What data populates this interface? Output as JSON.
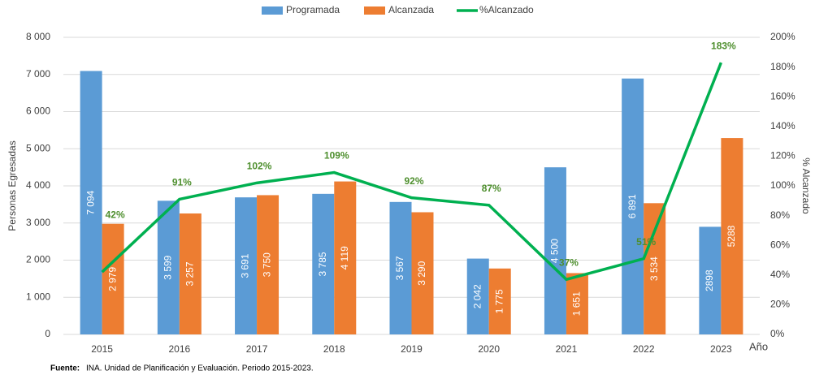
{
  "chart_data": {
    "type": "bar",
    "categories": [
      "2015",
      "2016",
      "2017",
      "2018",
      "2019",
      "2020",
      "2021",
      "2022",
      "2023"
    ],
    "series": [
      {
        "name": "Programada",
        "color": "#5b9bd5",
        "type": "bar",
        "values": [
          7094,
          3599,
          3691,
          3785,
          3567,
          2042,
          4500,
          6891,
          2898
        ],
        "value_labels": [
          "7 094",
          "3 599",
          "3 691",
          "3 785",
          "3 567",
          "2 042",
          "4 500",
          "6 891",
          "2898"
        ]
      },
      {
        "name": "Alcanzada",
        "color": "#ed7d31",
        "type": "bar",
        "values": [
          2979,
          3257,
          3750,
          4119,
          3290,
          1775,
          1651,
          3534,
          5288
        ],
        "value_labels": [
          "2 979",
          "3 257",
          "3 750",
          "4 119",
          "3 290",
          "1 775",
          "1 651",
          "3 534",
          "5288"
        ]
      },
      {
        "name": "%Alcanzado",
        "color": "#00b050",
        "type": "line",
        "axis": "y2",
        "values": [
          42,
          91,
          102,
          109,
          92,
          87,
          37,
          51,
          183
        ],
        "value_labels": [
          "42%",
          "91%",
          "102%",
          "109%",
          "92%",
          "87%",
          "37%",
          "51%",
          "183%"
        ]
      }
    ],
    "ylabel": "Personas Egresadas",
    "y2label": "% Alcanzado",
    "xlabel": "Año",
    "ylim": [
      0,
      8000
    ],
    "yticks": [
      0,
      {
        "value": 1000,
        "label": "1 000"
      },
      {
        "value": 2000,
        "label": "2 000"
      },
      {
        "value": 3000,
        "label": "3 000"
      },
      {
        "value": 4000,
        "label": "4 000"
      },
      {
        "value": 5000,
        "label": "5 000"
      },
      {
        "value": 6000,
        "label": "6 000"
      },
      {
        "value": 7000,
        "label": "7 000"
      },
      {
        "value": 8000,
        "label": "8 000"
      }
    ],
    "y2lim": [
      0,
      200
    ],
    "y2ticks": [
      {
        "value": 0,
        "label": "0%"
      },
      {
        "value": 20,
        "label": "20%"
      },
      {
        "value": 40,
        "label": "40%"
      },
      {
        "value": 60,
        "label": "60%"
      },
      {
        "value": 80,
        "label": "80%"
      },
      {
        "value": 100,
        "label": "100%"
      },
      {
        "value": 120,
        "label": "120%"
      },
      {
        "value": 140,
        "label": "140%"
      },
      {
        "value": 160,
        "label": "160%"
      },
      {
        "value": 180,
        "label": "180%"
      },
      {
        "value": 200,
        "label": "200%"
      }
    ],
    "grid": true,
    "legend": "top",
    "source_label": "Fuente:",
    "source_text": "INA. Unidad de Planificación y Evaluación. Periodo 2015-2023."
  }
}
